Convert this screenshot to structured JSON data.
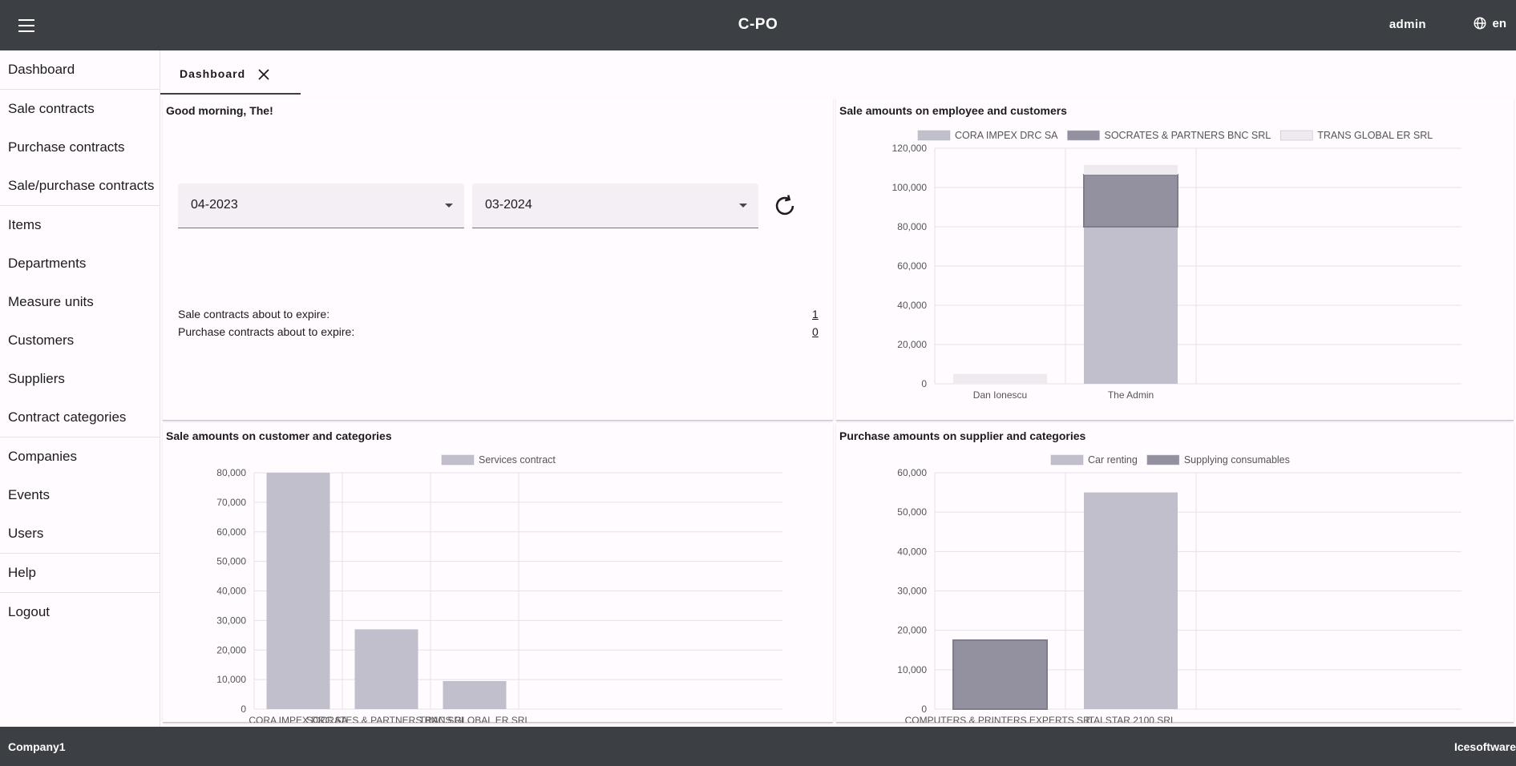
{
  "header": {
    "app_title": "C-PO",
    "user": "admin",
    "language": "en",
    "menu_icon": "menu-icon",
    "language_icon": "globe-icon"
  },
  "sidebar": {
    "items": [
      {
        "label": "Dashboard"
      },
      {
        "label": "Sale contracts"
      },
      {
        "label": "Purchase contracts"
      },
      {
        "label": "Sale/purchase contracts"
      },
      {
        "label": "Items"
      },
      {
        "label": "Departments"
      },
      {
        "label": "Measure units"
      },
      {
        "label": "Customers"
      },
      {
        "label": "Suppliers"
      },
      {
        "label": "Contract categories"
      },
      {
        "label": "Companies"
      },
      {
        "label": "Events"
      },
      {
        "label": "Users"
      },
      {
        "label": "Help"
      },
      {
        "label": "Logout"
      }
    ]
  },
  "tabs": [
    {
      "label": "Dashboard",
      "close_icon": "close-icon"
    }
  ],
  "welcome": {
    "greeting": "Good morning, The!",
    "from_period": "04-2023",
    "to_period": "03-2024",
    "refresh_icon": "refresh-icon",
    "sale_expire_label": "Sale contracts about to expire:",
    "sale_expire_count": "1",
    "purchase_expire_label": "Purchase contracts about to expire:",
    "purchase_expire_count": "0"
  },
  "colors": {
    "series_light": "#c2bfcc",
    "series_dark": "#93919f",
    "series_faint": "#eeeaf0",
    "header_bg": "#3c4045"
  },
  "chart_data": [
    {
      "type": "bar",
      "stacked": true,
      "title": "Sale amounts on employee and customers",
      "categories": [
        "Dan Ionescu",
        "The Admin"
      ],
      "series": [
        {
          "name": "CORA IMPEX DRC SA",
          "values": [
            0,
            80000
          ],
          "color": "#c2bfcc"
        },
        {
          "name": "SOCRATES & PARTNERS BNC SRL",
          "values": [
            0,
            26500
          ],
          "color": "#93919f"
        },
        {
          "name": "TRANS GLOBAL ER SRL",
          "values": [
            5000,
            5000
          ],
          "color": "#eeeaf0"
        }
      ],
      "ylim": [
        0,
        120000
      ],
      "yticks": [
        "0",
        "20,000",
        "40,000",
        "60,000",
        "80,000",
        "100,000",
        "120,000"
      ],
      "grid": true,
      "legend": "top"
    },
    {
      "type": "bar",
      "title": "Sale amounts on customer and categories",
      "categories": [
        "CORA IMPEX DRC SA",
        "SOCRATES & PARTNERS BNC SRL",
        "TRANS GLOBAL ER SRL"
      ],
      "series": [
        {
          "name": "Services contract",
          "values": [
            80000,
            27000,
            9500
          ],
          "color": "#c2bfcc"
        }
      ],
      "ylim": [
        0,
        80000
      ],
      "yticks": [
        "0",
        "10,000",
        "20,000",
        "30,000",
        "40,000",
        "50,000",
        "60,000",
        "70,000",
        "80,000"
      ],
      "grid": true,
      "legend": "top"
    },
    {
      "type": "bar",
      "title": "Purchase amounts on supplier and categories",
      "categories": [
        "COMPUTERS & PRINTERS EXPERTS SRL",
        "ITALSTAR 2100 SRL"
      ],
      "series": [
        {
          "name": "Car renting",
          "values": [
            0,
            55000
          ],
          "color": "#c2bfcc"
        },
        {
          "name": "Supplying consumables",
          "values": [
            17500,
            0
          ],
          "color": "#93919f"
        }
      ],
      "ylim": [
        0,
        60000
      ],
      "yticks": [
        "0",
        "10,000",
        "20,000",
        "30,000",
        "40,000",
        "50,000",
        "60,000"
      ],
      "grid": true,
      "legend": "top"
    }
  ],
  "footer": {
    "company": "Company1",
    "vendor": "Icesoftware"
  }
}
